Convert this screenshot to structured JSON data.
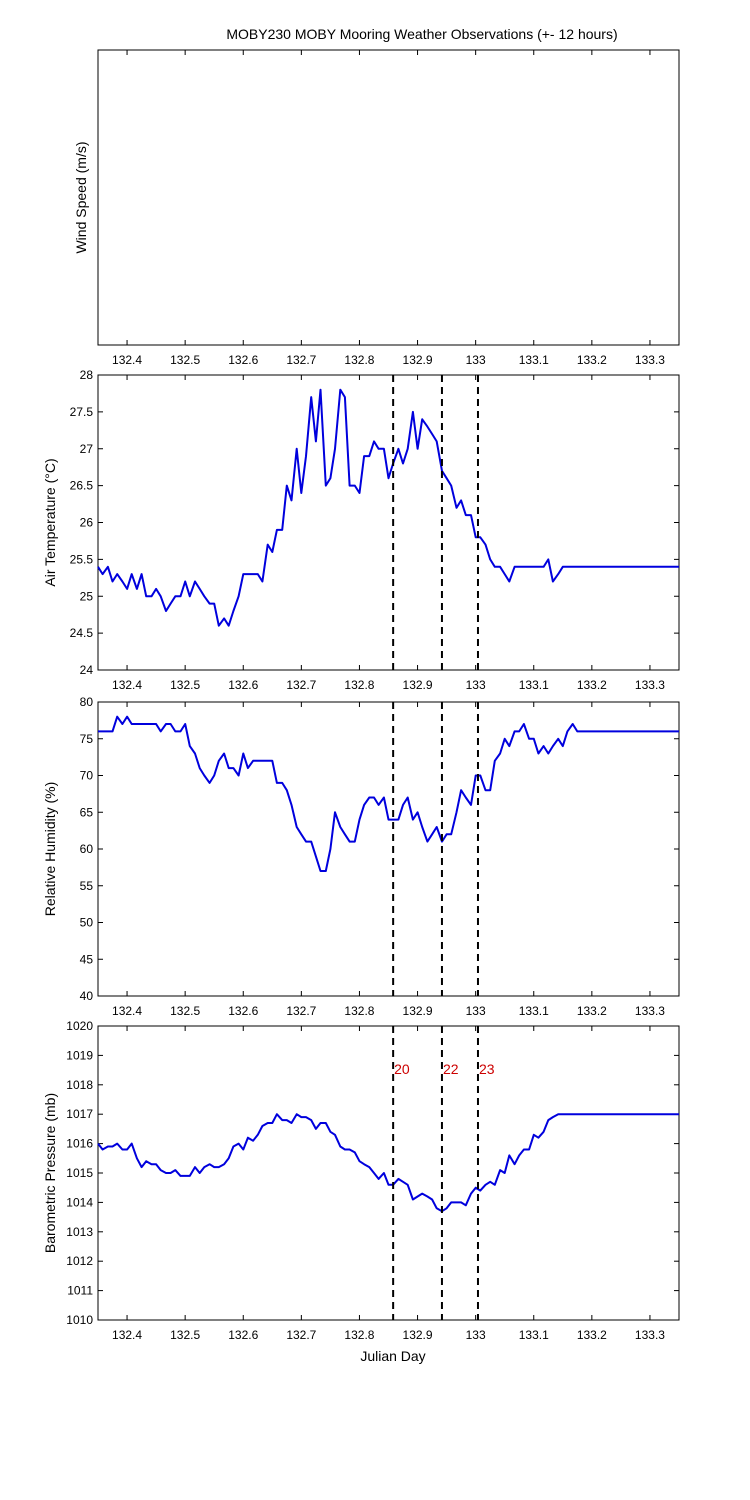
{
  "title": "MOBY230 MOBY Mooring Weather Observations (+- 12 hours)",
  "xlabel": "Julian Day",
  "line_color": "#0000dd",
  "event_label_color": "#cc0000",
  "chart_data": [
    {
      "type": "line",
      "ylabel": "Wind Speed (m/s)",
      "xlim": [
        132.35,
        133.35
      ],
      "x_ticks": [
        "132.4",
        "132.5",
        "132.6",
        "132.7",
        "132.8",
        "132.9",
        "133",
        "133.1",
        "133.2",
        "133.3"
      ],
      "y_ticks": [],
      "x": [],
      "y": []
    },
    {
      "type": "line",
      "ylabel": "Air Temperature (°C)",
      "xlim": [
        132.35,
        133.35
      ],
      "ylim": [
        24,
        28
      ],
      "x_ticks": [
        "132.4",
        "132.5",
        "132.6",
        "132.7",
        "132.8",
        "132.9",
        "133",
        "133.1",
        "133.2",
        "133.3"
      ],
      "y_ticks": [
        "24",
        "24.5",
        "25",
        "25.5",
        "26",
        "26.5",
        "27",
        "27.5",
        "28"
      ],
      "x": [
        132.35,
        132.358,
        132.367,
        132.375,
        132.383,
        132.392,
        132.4,
        132.408,
        132.417,
        132.425,
        132.433,
        132.442,
        132.45,
        132.458,
        132.467,
        132.475,
        132.483,
        132.492,
        132.5,
        132.508,
        132.517,
        132.525,
        132.533,
        132.542,
        132.55,
        132.558,
        132.567,
        132.575,
        132.583,
        132.592,
        132.6,
        132.608,
        132.617,
        132.625,
        132.633,
        132.642,
        132.65,
        132.658,
        132.667,
        132.675,
        132.683,
        132.692,
        132.7,
        132.708,
        132.717,
        132.725,
        132.733,
        132.742,
        132.75,
        132.758,
        132.767,
        132.775,
        132.783,
        132.792,
        132.8,
        132.808,
        132.817,
        132.825,
        132.833,
        132.842,
        132.85,
        132.858,
        132.867,
        132.875,
        132.883,
        132.892,
        132.9,
        132.908,
        132.917,
        132.925,
        132.933,
        132.942,
        132.95,
        132.958,
        132.967,
        132.975,
        132.983,
        132.992,
        133.0,
        133.008,
        133.017,
        133.025,
        133.033,
        133.042,
        133.05,
        133.058,
        133.067,
        133.075,
        133.083,
        133.092,
        133.1,
        133.108,
        133.117,
        133.125,
        133.133,
        133.142,
        133.15,
        133.158,
        133.167,
        133.175,
        133.183,
        133.192,
        133.2,
        133.208,
        133.217,
        133.225,
        133.233,
        133.242,
        133.25,
        133.258,
        133.267,
        133.275,
        133.283,
        133.292,
        133.3,
        133.308,
        133.317,
        133.325,
        133.333,
        133.342,
        133.35
      ],
      "y": [
        25.4,
        25.3,
        25.4,
        25.2,
        25.3,
        25.2,
        25.1,
        25.3,
        25.1,
        25.3,
        25.0,
        25.0,
        25.1,
        25.0,
        24.8,
        24.9,
        25.0,
        25.0,
        25.2,
        25.0,
        25.2,
        25.1,
        25.0,
        24.9,
        24.9,
        24.6,
        24.7,
        24.6,
        24.8,
        25.0,
        25.3,
        25.3,
        25.3,
        25.3,
        25.2,
        25.7,
        25.6,
        25.9,
        25.9,
        26.5,
        26.3,
        27.0,
        26.4,
        26.9,
        27.7,
        27.1,
        27.8,
        26.5,
        26.6,
        27.0,
        27.8,
        27.7,
        26.5,
        26.5,
        26.4,
        26.9,
        26.9,
        27.1,
        27.0,
        27.0,
        26.6,
        26.8,
        27.0,
        26.8,
        27.0,
        27.5,
        27.0,
        27.4,
        27.3,
        27.2,
        27.1,
        26.7,
        26.6,
        26.5,
        26.2,
        26.3,
        26.1,
        26.1,
        25.8,
        25.8,
        25.7,
        25.5,
        25.4,
        25.4,
        25.3,
        25.2,
        25.4,
        25.4,
        25.4,
        25.4,
        25.4,
        25.4,
        25.4,
        25.5,
        25.2,
        25.3,
        25.4,
        25.4,
        25.4,
        25.4,
        25.4,
        25.4,
        25.4,
        25.4,
        25.4,
        25.4,
        25.4,
        25.4,
        25.4,
        25.4,
        25.4,
        25.4,
        25.4,
        25.4,
        25.4,
        25.4,
        25.4,
        25.4,
        25.4,
        25.4,
        25.4
      ]
    },
    {
      "type": "line",
      "ylabel": "Relative Humidity (%)",
      "xlim": [
        132.35,
        133.35
      ],
      "ylim": [
        40,
        80
      ],
      "x_ticks": [
        "132.4",
        "132.5",
        "132.6",
        "132.7",
        "132.8",
        "132.9",
        "133",
        "133.1",
        "133.2",
        "133.3"
      ],
      "y_ticks": [
        "40",
        "45",
        "50",
        "55",
        "60",
        "65",
        "70",
        "75",
        "80"
      ],
      "x": [
        132.35,
        132.358,
        132.367,
        132.375,
        132.383,
        132.392,
        132.4,
        132.408,
        132.417,
        132.425,
        132.433,
        132.442,
        132.45,
        132.458,
        132.467,
        132.475,
        132.483,
        132.492,
        132.5,
        132.508,
        132.517,
        132.525,
        132.533,
        132.542,
        132.55,
        132.558,
        132.567,
        132.575,
        132.583,
        132.592,
        132.6,
        132.608,
        132.617,
        132.625,
        132.633,
        132.642,
        132.65,
        132.658,
        132.667,
        132.675,
        132.683,
        132.692,
        132.7,
        132.708,
        132.717,
        132.725,
        132.733,
        132.742,
        132.75,
        132.758,
        132.767,
        132.775,
        132.783,
        132.792,
        132.8,
        132.808,
        132.817,
        132.825,
        132.833,
        132.842,
        132.85,
        132.858,
        132.867,
        132.875,
        132.883,
        132.892,
        132.9,
        132.908,
        132.917,
        132.925,
        132.933,
        132.942,
        132.95,
        132.958,
        132.967,
        132.975,
        132.983,
        132.992,
        133.0,
        133.008,
        133.017,
        133.025,
        133.033,
        133.042,
        133.05,
        133.058,
        133.067,
        133.075,
        133.083,
        133.092,
        133.1,
        133.108,
        133.117,
        133.125,
        133.133,
        133.142,
        133.15,
        133.158,
        133.167,
        133.175,
        133.183,
        133.192,
        133.2,
        133.208,
        133.217,
        133.225,
        133.233,
        133.242,
        133.25,
        133.258,
        133.267,
        133.275,
        133.283,
        133.292,
        133.3,
        133.308,
        133.317,
        133.325,
        133.333,
        133.342,
        133.35
      ],
      "y": [
        76,
        76,
        76,
        76,
        78,
        77,
        78,
        77,
        77,
        77,
        77,
        77,
        77,
        76,
        77,
        77,
        76,
        76,
        77,
        74,
        73,
        71,
        70,
        69,
        70,
        72,
        73,
        71,
        71,
        70,
        73,
        71,
        72,
        72,
        72,
        72,
        72,
        69,
        69,
        68,
        66,
        63,
        62,
        61,
        61,
        59,
        57,
        57,
        60,
        65,
        63,
        62,
        61,
        61,
        64,
        66,
        67,
        67,
        66,
        67,
        64,
        64,
        64,
        66,
        67,
        64,
        65,
        63,
        61,
        62,
        63,
        61,
        62,
        62,
        65,
        68,
        67,
        66,
        70,
        70,
        68,
        68,
        72,
        73,
        75,
        74,
        76,
        76,
        77,
        75,
        75,
        73,
        74,
        73,
        74,
        75,
        74,
        76,
        77,
        76,
        76,
        76,
        76,
        76,
        76,
        76,
        76,
        76,
        76,
        76,
        76,
        76,
        76,
        76,
        76,
        76,
        76,
        76,
        76,
        76,
        76
      ]
    },
    {
      "type": "line",
      "ylabel": "Barometric Pressure (mb)",
      "xlim": [
        132.35,
        133.35
      ],
      "ylim": [
        1010,
        1020
      ],
      "x_ticks": [
        "132.4",
        "132.5",
        "132.6",
        "132.7",
        "132.8",
        "132.9",
        "133",
        "133.1",
        "133.2",
        "133.3"
      ],
      "y_ticks": [
        "1010",
        "1011",
        "1012",
        "1013",
        "1014",
        "1015",
        "1016",
        "1017",
        "1018",
        "1019",
        "1020"
      ],
      "x": [
        132.35,
        132.358,
        132.367,
        132.375,
        132.383,
        132.392,
        132.4,
        132.408,
        132.417,
        132.425,
        132.433,
        132.442,
        132.45,
        132.458,
        132.467,
        132.475,
        132.483,
        132.492,
        132.5,
        132.508,
        132.517,
        132.525,
        132.533,
        132.542,
        132.55,
        132.558,
        132.567,
        132.575,
        132.583,
        132.592,
        132.6,
        132.608,
        132.617,
        132.625,
        132.633,
        132.642,
        132.65,
        132.658,
        132.667,
        132.675,
        132.683,
        132.692,
        132.7,
        132.708,
        132.717,
        132.725,
        132.733,
        132.742,
        132.75,
        132.758,
        132.767,
        132.775,
        132.783,
        132.792,
        132.8,
        132.808,
        132.817,
        132.825,
        132.833,
        132.842,
        132.85,
        132.858,
        132.867,
        132.875,
        132.883,
        132.892,
        132.9,
        132.908,
        132.917,
        132.925,
        132.933,
        132.942,
        132.95,
        132.958,
        132.967,
        132.975,
        132.983,
        132.992,
        133.0,
        133.008,
        133.017,
        133.025,
        133.033,
        133.042,
        133.05,
        133.058,
        133.067,
        133.075,
        133.083,
        133.092,
        133.1,
        133.108,
        133.117,
        133.125,
        133.133,
        133.142,
        133.15,
        133.158,
        133.167,
        133.175,
        133.183,
        133.192,
        133.2,
        133.208,
        133.217,
        133.225,
        133.233,
        133.242,
        133.25,
        133.258,
        133.267,
        133.275,
        133.283,
        133.292,
        133.3,
        133.308,
        133.317,
        133.325,
        133.333,
        133.342,
        133.35
      ],
      "y": [
        1016.0,
        1015.8,
        1015.9,
        1015.9,
        1016.0,
        1015.8,
        1015.8,
        1016.0,
        1015.5,
        1015.2,
        1015.4,
        1015.3,
        1015.3,
        1015.1,
        1015.0,
        1015.0,
        1015.1,
        1014.9,
        1014.9,
        1014.9,
        1015.2,
        1015.0,
        1015.2,
        1015.3,
        1015.2,
        1015.2,
        1015.3,
        1015.5,
        1015.9,
        1016.0,
        1015.8,
        1016.2,
        1016.1,
        1016.3,
        1016.6,
        1016.7,
        1016.7,
        1017.0,
        1016.8,
        1016.8,
        1016.7,
        1017.0,
        1016.9,
        1016.9,
        1016.8,
        1016.5,
        1016.7,
        1016.7,
        1016.4,
        1016.3,
        1015.9,
        1015.8,
        1015.8,
        1015.7,
        1015.4,
        1015.3,
        1015.2,
        1015.0,
        1014.8,
        1015.0,
        1014.6,
        1014.6,
        1014.8,
        1014.7,
        1014.6,
        1014.1,
        1014.2,
        1014.3,
        1014.2,
        1014.1,
        1013.8,
        1013.7,
        1013.8,
        1014.0,
        1014.0,
        1014.0,
        1013.9,
        1014.3,
        1014.5,
        1014.4,
        1014.6,
        1014.7,
        1014.6,
        1015.1,
        1015.0,
        1015.6,
        1015.3,
        1015.6,
        1015.8,
        1015.8,
        1016.3,
        1016.2,
        1016.4,
        1016.8,
        1016.9,
        1017.0,
        1017.0,
        1017.0,
        1017.0,
        1017.0,
        1017.0,
        1017.0,
        1017.0,
        1017.0,
        1017.0,
        1017.0,
        1017.0,
        1017.0,
        1017.0,
        1017.0,
        1017.0,
        1017.0,
        1017.0,
        1017.0,
        1017.0,
        1017.0,
        1017.0,
        1017.0,
        1017.0,
        1017.0,
        1017.0
      ],
      "event_lines": [
        {
          "x": 132.858,
          "label": "20"
        },
        {
          "x": 132.942,
          "label": "22"
        },
        {
          "x": 133.004,
          "label": "23"
        }
      ]
    }
  ],
  "event_lines_x": [
    132.858,
    132.942,
    133.004
  ]
}
